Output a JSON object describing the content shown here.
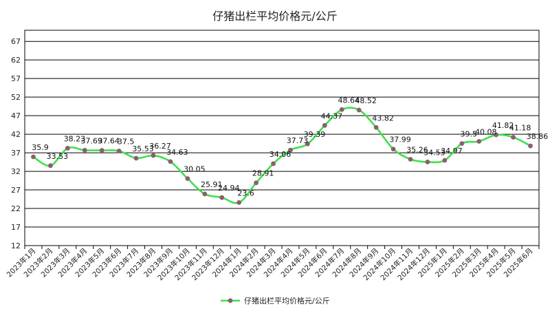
{
  "chart_data": {
    "type": "line",
    "title": "仔猪出栏平均价格元/公斤",
    "xlabel": "",
    "ylabel": "",
    "ylim": [
      12,
      70
    ],
    "yticks": [
      12,
      17,
      22,
      27,
      32,
      37,
      42,
      47,
      52,
      57,
      62,
      67
    ],
    "grid": true,
    "legend_position": "bottom-center",
    "categories": [
      "2023年1月",
      "2023年2月",
      "2023年3月",
      "2023年4月",
      "2023年5月",
      "2023年6月",
      "2023年7月",
      "2023年8月",
      "2023年9月",
      "2023年10月",
      "2023年11月",
      "2023年12月",
      "2024年1月",
      "2024年2月",
      "2024年3月",
      "2024年4月",
      "2024年5月",
      "2024年6月",
      "2024年7月",
      "2024年8月",
      "2024年9月",
      "2024年10月",
      "2024年11月",
      "2024年12月",
      "2025年1月",
      "2025年2月",
      "2025年3月",
      "2025年4月",
      "2025年5月",
      "2025年6月"
    ],
    "series": [
      {
        "name": "仔猪出栏平均价格元/公斤",
        "line_color": "#3ee04a",
        "marker_color": "#8b5e72",
        "values": [
          35.9,
          33.53,
          38.23,
          37.69,
          37.64,
          37.5,
          35.53,
          36.27,
          34.63,
          30.05,
          25.91,
          24.94,
          23.6,
          28.91,
          34.06,
          37.73,
          39.39,
          44.37,
          48.64,
          48.52,
          43.82,
          37.99,
          35.26,
          34.53,
          34.97,
          39.5,
          40.08,
          41.82,
          41.18,
          38.86
        ],
        "labels": [
          "35.9",
          "33.53",
          "38.23",
          "37.69",
          "37.64",
          "37.5",
          "35.53",
          "36.27",
          "34.63",
          "30.05",
          "25.91",
          "24.94",
          "23.6",
          "28.91",
          "34.06",
          "37.73",
          "39.39",
          "44.37",
          "48.64",
          "48.52",
          "43.82",
          "37.99",
          "35.26",
          "34.53",
          "34.97",
          "39.5",
          "40.08",
          "41.82",
          "41.18",
          "38.86"
        ]
      }
    ]
  }
}
